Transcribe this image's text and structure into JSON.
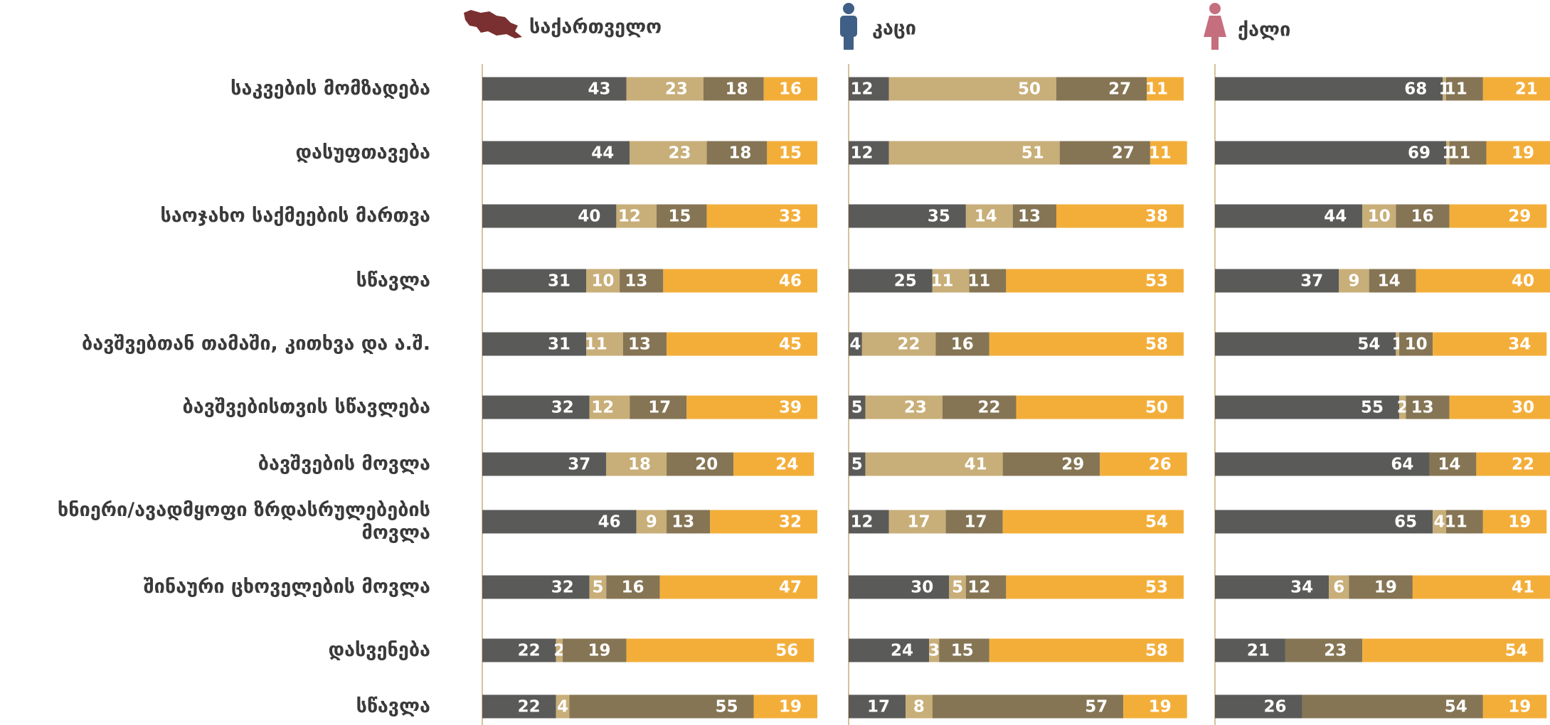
{
  "chart_data": [
    {
      "type": "stacked-bar",
      "title": "საქართველო",
      "categories": [
        "საკვების მომზადება",
        "დასუფთავება",
        "საოჯახო საქმეების მართვა",
        "სწავლა",
        "ბავშვებთან თამაში, კითხვა და ა.შ.",
        "ბავშვებისთვის სწავლება",
        "ბავშვების მოვლა",
        "ხნიერი/ავადმყოფი ზრდასრულებების მოვლა",
        "შინაური ცხოველების მოვლა",
        "დასვენება",
        "სწავლა"
      ],
      "xlim": [
        0,
        100
      ],
      "series": [
        {
          "color": "#5a5a58",
          "values": [
            43,
            44,
            40,
            31,
            31,
            32,
            37,
            46,
            32,
            22,
            22
          ]
        },
        {
          "color": "#c8ae78",
          "values": [
            23,
            23,
            12,
            10,
            11,
            12,
            18,
            9,
            5,
            2,
            4
          ]
        },
        {
          "color": "#857554",
          "values": [
            18,
            18,
            15,
            13,
            13,
            17,
            20,
            13,
            16,
            19,
            55
          ]
        },
        {
          "color": "#f3ae3a",
          "values": [
            16,
            15,
            33,
            46,
            45,
            39,
            24,
            32,
            47,
            56,
            19
          ]
        }
      ]
    },
    {
      "type": "stacked-bar",
      "title": "კაცი",
      "xlim": [
        0,
        100
      ],
      "series": [
        {
          "color": "#5a5a58",
          "values": [
            12,
            12,
            35,
            25,
            4,
            5,
            5,
            12,
            30,
            24,
            17
          ]
        },
        {
          "color": "#c8ae78",
          "values": [
            50,
            51,
            14,
            11,
            22,
            23,
            41,
            17,
            5,
            3,
            8
          ]
        },
        {
          "color": "#857554",
          "values": [
            27,
            27,
            13,
            11,
            16,
            22,
            29,
            17,
            12,
            15,
            57
          ]
        },
        {
          "color": "#f3ae3a",
          "values": [
            11,
            11,
            38,
            53,
            58,
            50,
            26,
            54,
            53,
            58,
            19
          ]
        }
      ]
    },
    {
      "type": "stacked-bar",
      "title": "ქალი",
      "xlim": [
        0,
        100
      ],
      "series": [
        {
          "color": "#5a5a58",
          "values": [
            68,
            69,
            44,
            37,
            54,
            55,
            64,
            65,
            34,
            21,
            26
          ]
        },
        {
          "color": "#c8ae78",
          "values": [
            1,
            1,
            10,
            9,
            1,
            2,
            null,
            4,
            6,
            null,
            null
          ]
        },
        {
          "color": "#857554",
          "values": [
            11,
            11,
            16,
            14,
            10,
            13,
            14,
            11,
            19,
            23,
            54
          ]
        },
        {
          "color": "#f3ae3a",
          "values": [
            21,
            19,
            29,
            40,
            34,
            30,
            22,
            19,
            41,
            54,
            19
          ]
        }
      ]
    }
  ]
}
